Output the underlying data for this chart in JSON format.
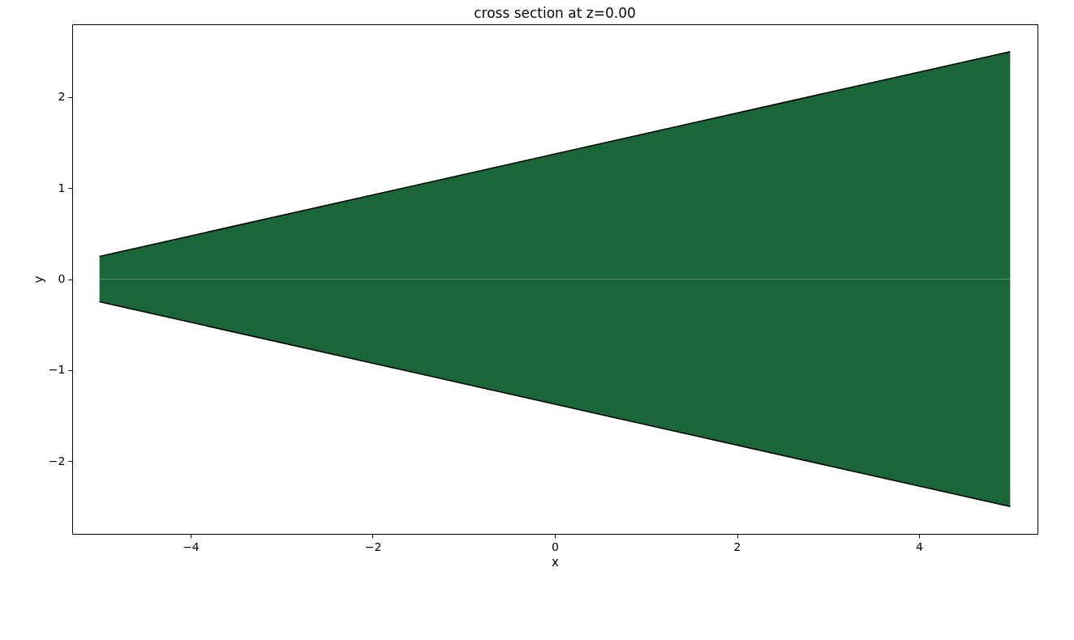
{
  "chart_data": {
    "type": "area",
    "title": "cross section at z=0.00",
    "xlabel": "x",
    "ylabel": "y",
    "x": [
      -5,
      5
    ],
    "series": [
      {
        "color": "#1a6638",
        "values": [
          0.25,
          2.5
        ]
      },
      {
        "color": "#1a6638",
        "values": [
          -0.25,
          -2.5
        ]
      }
    ],
    "xlim": [
      -5.3,
      5.3
    ],
    "xticks": [
      -4,
      -2,
      0,
      2,
      4
    ],
    "ylim": [
      -2.8,
      2.8
    ],
    "yticks": [
      -2,
      -1,
      0,
      1,
      2
    ],
    "grid": false
  }
}
